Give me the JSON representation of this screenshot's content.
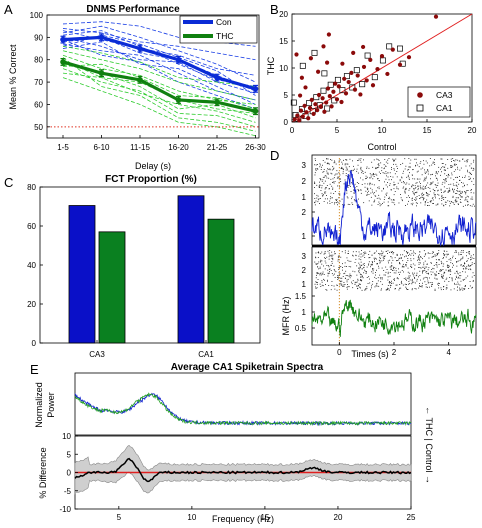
{
  "chart_data": [
    {
      "panel_letter": "A",
      "type": "line",
      "title": "DNMS Performance",
      "xlabel": "Delay (s)",
      "ylabel": "Mean % Correct",
      "categories": [
        "1-5",
        "6-10",
        "11-15",
        "16-20",
        "21-25",
        "26-30"
      ],
      "ylim": [
        45,
        100
      ],
      "yticks": [
        50,
        60,
        70,
        80,
        90,
        100
      ],
      "reference_line": 50,
      "legend_position": "top-right",
      "series": [
        {
          "name": "Con",
          "color": "#0a2bd6",
          "values": [
            89,
            90,
            85,
            80,
            72,
            67
          ],
          "error": [
            1.5,
            1.5,
            1.5,
            1.5,
            1.5,
            1.5
          ]
        },
        {
          "name": "THC",
          "color": "#108010",
          "values": [
            79,
            74,
            71,
            62,
            61,
            57
          ],
          "error": [
            1.5,
            1.5,
            1.5,
            1.5,
            1.5,
            1.5
          ]
        }
      ],
      "individual_con": [
        [
          96,
          97,
          95,
          90,
          88,
          86
        ],
        [
          94,
          92,
          88,
          86,
          83,
          80
        ],
        [
          93,
          89,
          85,
          82,
          76,
          73
        ],
        [
          91,
          93,
          86,
          78,
          71,
          68
        ],
        [
          90,
          86,
          80,
          79,
          70,
          65
        ],
        [
          87,
          84,
          82,
          74,
          66,
          62
        ],
        [
          85,
          88,
          78,
          76,
          68,
          60
        ],
        [
          89,
          82,
          79,
          70,
          64,
          58
        ],
        [
          92,
          95,
          90,
          84,
          78,
          70
        ],
        [
          88,
          90,
          83,
          80,
          73,
          66
        ],
        [
          86,
          91,
          87,
          81,
          75,
          64
        ]
      ],
      "individual_thc": [
        [
          86,
          83,
          79,
          72,
          70,
          68
        ],
        [
          84,
          80,
          76,
          70,
          66,
          62
        ],
        [
          82,
          76,
          73,
          66,
          62,
          60
        ],
        [
          80,
          72,
          70,
          62,
          58,
          56
        ],
        [
          78,
          74,
          68,
          58,
          60,
          54
        ],
        [
          76,
          70,
          66,
          56,
          55,
          50
        ],
        [
          74,
          72,
          65,
          60,
          57,
          52
        ],
        [
          81,
          68,
          64,
          54,
          52,
          48
        ],
        [
          77,
          78,
          72,
          64,
          63,
          58
        ],
        [
          72,
          66,
          60,
          52,
          50,
          46
        ]
      ]
    },
    {
      "panel_letter": "B",
      "type": "scatter",
      "xlabel": "Control",
      "ylabel": "THC",
      "xlim": [
        0,
        20
      ],
      "ylim": [
        0,
        20
      ],
      "xticks": [
        0,
        5,
        10,
        15,
        20
      ],
      "yticks": [
        0,
        5,
        10,
        15,
        20
      ],
      "identity_line": true,
      "legend_position": "bottom-right",
      "series": [
        {
          "name": "CA3",
          "marker": "filled-circle",
          "color": "#8b0a0a",
          "points": [
            [
              0.3,
              0.5
            ],
            [
              0.6,
              1.2
            ],
            [
              0.8,
              0.3
            ],
            [
              1.0,
              2.1
            ],
            [
              1.2,
              1.0
            ],
            [
              1.4,
              3.0
            ],
            [
              1.6,
              1.8
            ],
            [
              1.8,
              0.7
            ],
            [
              2.0,
              2.6
            ],
            [
              2.2,
              4.1
            ],
            [
              2.4,
              1.5
            ],
            [
              2.6,
              3.3
            ],
            [
              2.8,
              2.2
            ],
            [
              3.0,
              5.0
            ],
            [
              3.2,
              2.8
            ],
            [
              3.4,
              4.4
            ],
            [
              3.6,
              1.9
            ],
            [
              3.8,
              3.6
            ],
            [
              4.0,
              6.2
            ],
            [
              4.2,
              4.8
            ],
            [
              4.4,
              2.9
            ],
            [
              4.6,
              5.6
            ],
            [
              4.8,
              7.1
            ],
            [
              5.0,
              4.2
            ],
            [
              5.2,
              6.6
            ],
            [
              5.5,
              3.7
            ],
            [
              5.8,
              8.0
            ],
            [
              6.0,
              5.3
            ],
            [
              6.3,
              7.4
            ],
            [
              6.6,
              9.1
            ],
            [
              7.0,
              6.0
            ],
            [
              7.3,
              8.6
            ],
            [
              7.6,
              5.1
            ],
            [
              8.0,
              10.2
            ],
            [
              8.3,
              7.7
            ],
            [
              8.7,
              11.5
            ],
            [
              9.0,
              6.8
            ],
            [
              9.5,
              9.8
            ],
            [
              10.0,
              12.2
            ],
            [
              10.6,
              8.9
            ],
            [
              11.2,
              13.4
            ],
            [
              12.0,
              10.6
            ],
            [
              13.0,
              12.0
            ],
            [
              16.0,
              19.5
            ],
            [
              2.1,
              11.8
            ],
            [
              3.5,
              14.0
            ],
            [
              1.1,
              8.2
            ],
            [
              0.5,
              12.5
            ],
            [
              4.1,
              16.2
            ],
            [
              5.6,
              10.8
            ],
            [
              6.8,
              12.8
            ],
            [
              7.9,
              13.9
            ],
            [
              0.9,
              4.9
            ],
            [
              1.5,
              6.4
            ],
            [
              2.9,
              9.3
            ],
            [
              3.9,
              11.0
            ]
          ]
        },
        {
          "name": "CA1",
          "marker": "open-square",
          "color": "#000000",
          "points": [
            [
              0.4,
              1.3
            ],
            [
              0.7,
              0.6
            ],
            [
              1.1,
              2.4
            ],
            [
              1.5,
              1.1
            ],
            [
              1.9,
              3.5
            ],
            [
              2.3,
              2.0
            ],
            [
              2.7,
              4.6
            ],
            [
              3.1,
              3.1
            ],
            [
              3.5,
              5.8
            ],
            [
              3.9,
              2.5
            ],
            [
              4.3,
              6.9
            ],
            [
              4.7,
              4.0
            ],
            [
              5.1,
              7.8
            ],
            [
              5.6,
              5.9
            ],
            [
              6.1,
              8.5
            ],
            [
              6.7,
              6.4
            ],
            [
              7.2,
              9.6
            ],
            [
              7.8,
              7.0
            ],
            [
              8.4,
              12.3
            ],
            [
              9.2,
              8.3
            ],
            [
              10.1,
              11.4
            ],
            [
              10.8,
              14.0
            ],
            [
              12.0,
              13.6
            ],
            [
              12.3,
              10.8
            ],
            [
              1.2,
              10.4
            ],
            [
              2.5,
              12.8
            ],
            [
              3.6,
              9.0
            ],
            [
              0.2,
              3.6
            ]
          ]
        }
      ]
    },
    {
      "panel_letter": "C",
      "type": "bar",
      "title": "FCT Proportion (%)",
      "categories": [
        "CA3",
        "CA1"
      ],
      "ylim": [
        0,
        80
      ],
      "yticks": [
        0,
        20,
        40,
        60,
        80
      ],
      "series": [
        {
          "group": "control",
          "color": "#0a10c8",
          "values": [
            70.5,
            75.5
          ]
        },
        {
          "group": "thc",
          "color": "#0a8020",
          "values": [
            57,
            63.5
          ]
        }
      ]
    },
    {
      "panel_letter": "D",
      "type": "line",
      "xlabel": "Times (s)",
      "ylabel": "MFR (Hz)",
      "xlim": [
        -1,
        5
      ],
      "xticks": [
        0,
        2,
        4
      ],
      "upper": {
        "ylim": [
          0,
          3
        ],
        "yticks": [
          1,
          2
        ],
        "raster_yticks": [
          1,
          2,
          3
        ],
        "color": "#1020d0",
        "baseline": 1.0,
        "peak": 2.5
      },
      "lower": {
        "ylim": [
          0,
          3
        ],
        "yticks": [
          0.5,
          1,
          1.5
        ],
        "raster_yticks": [
          1,
          2,
          3
        ],
        "color": "#108010",
        "baseline": 0.45,
        "peak": 0.8
      }
    },
    {
      "panel_letter": "E",
      "type": "line",
      "title": "Average CA1 Spiketrain Spectra",
      "xlabel": "Frequency (Hz)",
      "top_ylabel": "Normalized Power",
      "bottom_ylabel": "% Difference",
      "xlim": [
        2,
        25
      ],
      "xticks": [
        5,
        10,
        15,
        20,
        25
      ],
      "bottom_ylim": [
        -10,
        10
      ],
      "bottom_yticks": [
        -10,
        -5,
        0,
        5,
        10
      ],
      "side_label": "← THC | Control →",
      "series": [
        {
          "name": "Control",
          "color": "#1020d0"
        },
        {
          "name": "THC",
          "color": "#20a020"
        }
      ]
    }
  ]
}
